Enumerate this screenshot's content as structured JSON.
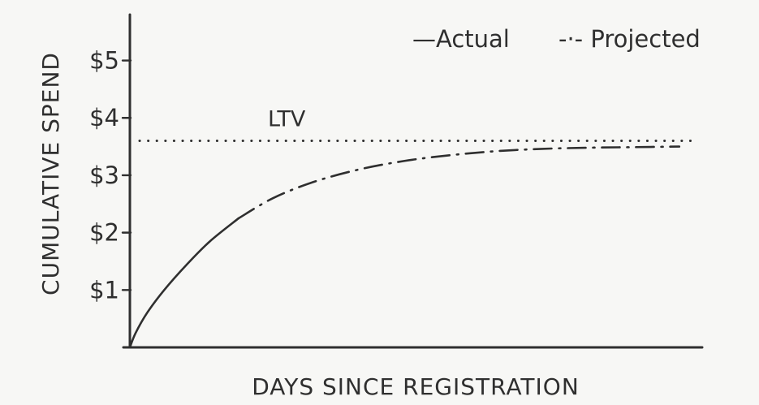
{
  "chart_data": {
    "type": "line",
    "xlabel": "DAYS SINCE REGISTRATION",
    "ylabel": "CUMULATIVE SPEND",
    "ylim": [
      0,
      5.8
    ],
    "xlim": [
      0,
      1
    ],
    "y_ticks": [
      {
        "value": 1,
        "label": "$1"
      },
      {
        "value": 2,
        "label": "$2"
      },
      {
        "value": 3,
        "label": "$3"
      },
      {
        "value": 4,
        "label": "$4"
      },
      {
        "value": 5,
        "label": "$5"
      }
    ],
    "grid": false,
    "legend_position": "top-right",
    "series": [
      {
        "name": "Actual",
        "style": "solid",
        "x": [
          0,
          0.01,
          0.03,
          0.06,
          0.1,
          0.14,
          0.19
        ],
        "y": [
          0,
          0.25,
          0.6,
          1.0,
          1.45,
          1.85,
          2.25
        ]
      },
      {
        "name": "Projected",
        "style": "dash-dot",
        "x": [
          0.19,
          0.25,
          0.32,
          0.4,
          0.48,
          0.56,
          0.64,
          0.72,
          0.8,
          0.88,
          0.96
        ],
        "y": [
          2.25,
          2.6,
          2.88,
          3.1,
          3.25,
          3.35,
          3.42,
          3.46,
          3.48,
          3.49,
          3.5
        ]
      }
    ],
    "reference_lines": [
      {
        "label": "LTV",
        "y": 3.6,
        "style": "dotted"
      }
    ],
    "legend": {
      "actual": "—Actual",
      "projected": "-·- Projected"
    }
  },
  "colors": {
    "ink": "#2f2f2f",
    "background": "#f7f7f5"
  }
}
